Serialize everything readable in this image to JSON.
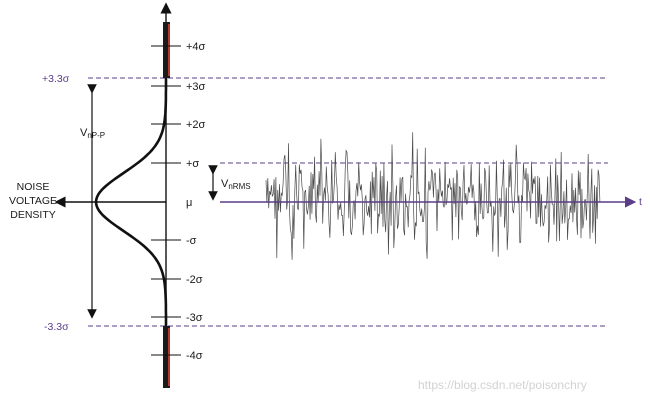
{
  "sigma_labels": [
    "+4σ",
    "+3σ",
    "+2σ",
    "+σ",
    "μ",
    "-σ",
    "-2σ",
    "-3σ",
    "-4σ"
  ],
  "bound_labels": {
    "upper": "+3.3σ",
    "lower": "-3.3σ"
  },
  "side_label": [
    "NOISE",
    "VOLTAGE",
    "DENSITY"
  ],
  "vpp_label": {
    "main": "V",
    "sub": "nP-P"
  },
  "vrms_label": {
    "main": "V",
    "sub": "nRMS"
  },
  "time_axis_label": "t",
  "watermark": "https://blog.csdn.net/poisonchry",
  "colors": {
    "purple": "#5b3d8a",
    "curve": "#111111",
    "bar_red": "#b33a2f",
    "noise": "#555555"
  }
}
